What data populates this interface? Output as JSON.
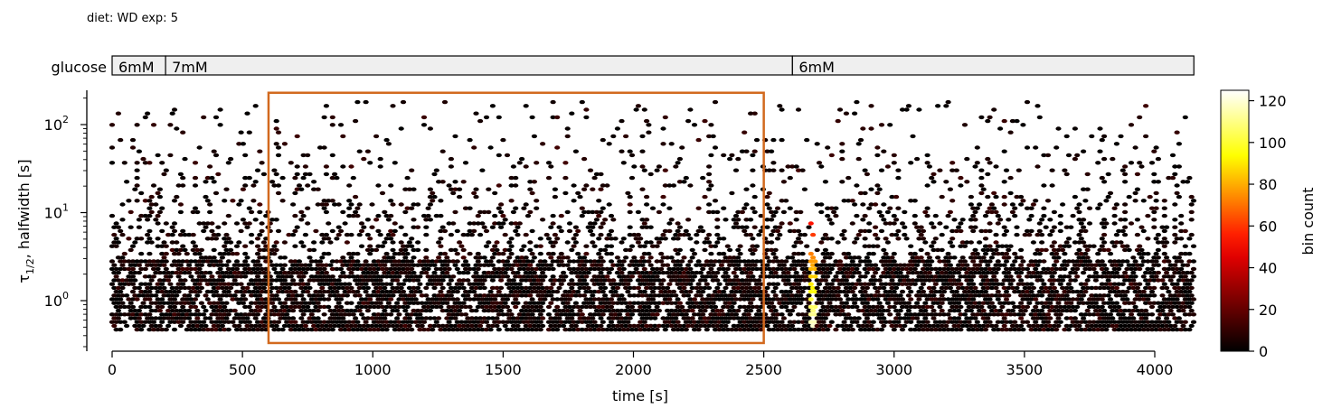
{
  "header": {
    "annotation": "diet: WD  exp: 5"
  },
  "protocol": {
    "label": "glucose",
    "segments": [
      {
        "label": "6mM",
        "start": 0,
        "end": 205
      },
      {
        "label": "7mM",
        "start": 205,
        "end": 2610
      },
      {
        "label": "6mM",
        "start": 2610,
        "end": 4150
      }
    ],
    "fill_color": "#efefef"
  },
  "chart_data": {
    "type": "heatmap",
    "subtype": "hexbin",
    "title": "",
    "xlabel": "time [s]",
    "ylabel": "τ₁₂, halfwidth [s]",
    "ylabel_parts": {
      "symbol": "τ",
      "sub": "1/2",
      "rest": ", halfwidth [s]"
    },
    "xlim": [
      -100,
      4150
    ],
    "ylim": [
      0.27,
      240
    ],
    "yscale": "log",
    "xticks": [
      0,
      500,
      1000,
      1500,
      2000,
      2500,
      3000,
      3500,
      4000
    ],
    "xtick_labels": [
      "0",
      "500",
      "1000",
      "1500",
      "2000",
      "2500",
      "3000",
      "3500",
      "4000"
    ],
    "yticks": [
      1,
      10,
      100
    ],
    "ytick_labels": [
      {
        "base": "10",
        "exp": "0"
      },
      {
        "base": "10",
        "exp": "1"
      },
      {
        "base": "10",
        "exp": "2"
      }
    ],
    "grid": false,
    "highlight_box": {
      "x": [
        600,
        2500
      ],
      "y": [
        0.33,
        230
      ],
      "color": "#d2691e"
    },
    "colorbar": {
      "label": "bin count",
      "range": [
        0,
        125
      ],
      "ticks": [
        0,
        20,
        40,
        60,
        80,
        100,
        120
      ],
      "colormap": "hot"
    },
    "density": {
      "x_range": [
        0,
        4150
      ],
      "y_range": [
        0.45,
        180
      ],
      "typical_count": "0-20",
      "hotspot": {
        "x": 2690,
        "y_range": [
          0.5,
          15
        ],
        "max_count": 125
      }
    }
  }
}
